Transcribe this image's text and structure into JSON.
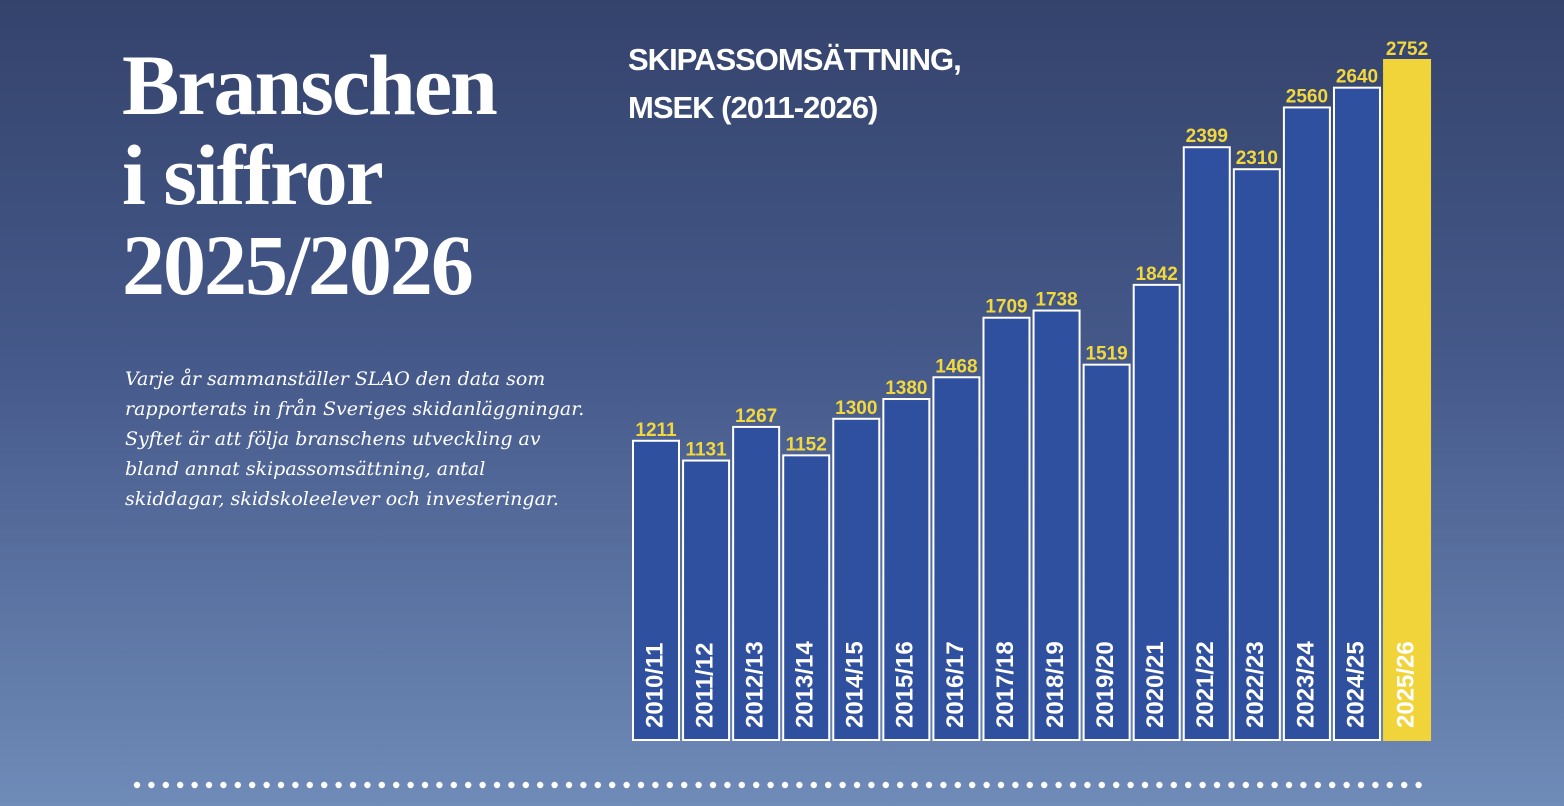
{
  "header": {
    "title_lines": [
      "Branschen",
      "i siffror",
      "2025/2026"
    ],
    "intro": "Varje år sammanställer SLAO den data som rapporterats in från Sveriges skidanläggningar. Syftet är att följa branschens utveckling av bland annat skipassomsättning, antal skiddagar, skidskoleelever och investeringar."
  },
  "chart_data": {
    "type": "bar",
    "title_lines": [
      "SKIPASSOMSÄTTNING,",
      "MSEK (2011-2026)"
    ],
    "categories": [
      "2010/11",
      "2011/12",
      "2012/13",
      "2013/14",
      "2014/15",
      "2015/16",
      "2016/17",
      "2017/18",
      "2018/19",
      "2019/20",
      "2020/21",
      "2021/22",
      "2022/23",
      "2023/24",
      "2024/25",
      "2025/26"
    ],
    "values": [
      1211,
      1131,
      1267,
      1152,
      1300,
      1380,
      1468,
      1709,
      1738,
      1519,
      1842,
      2399,
      2310,
      2560,
      2640,
      2752
    ],
    "colors": [
      "#2f4f9f",
      "#2f4f9f",
      "#2f4f9f",
      "#2f4f9f",
      "#2f4f9f",
      "#2f4f9f",
      "#2f4f9f",
      "#2f4f9f",
      "#2f4f9f",
      "#2f4f9f",
      "#2f4f9f",
      "#2f4f9f",
      "#2f4f9f",
      "#2f4f9f",
      "#2f4f9f",
      "#f0d43a"
    ]
  }
}
